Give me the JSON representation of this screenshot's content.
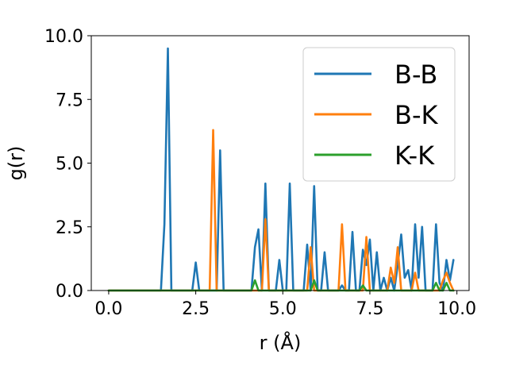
{
  "chart_data": {
    "type": "line",
    "xlabel": "r (Å)",
    "ylabel": "g(r)",
    "xlim": [
      -0.5,
      10.35
    ],
    "ylim": [
      0,
      10
    ],
    "xticks": [
      "0.0",
      "2.5",
      "5.0",
      "7.5",
      "10.0"
    ],
    "yticks": [
      "0.0",
      "2.5",
      "5.0",
      "7.5",
      "10.0"
    ],
    "grid": false,
    "legend": {
      "placement": "upper right"
    },
    "series": [
      {
        "name": "B-B",
        "color": "#1f77b4",
        "points": [
          [
            0.0,
            0
          ],
          [
            1.5,
            0
          ],
          [
            1.6,
            2.6
          ],
          [
            1.7,
            9.5
          ],
          [
            1.8,
            0
          ],
          [
            2.4,
            0
          ],
          [
            2.5,
            1.1
          ],
          [
            2.6,
            0
          ],
          [
            3.1,
            0
          ],
          [
            3.2,
            5.5
          ],
          [
            3.3,
            0
          ],
          [
            4.1,
            0
          ],
          [
            4.2,
            1.7
          ],
          [
            4.3,
            2.4
          ],
          [
            4.4,
            0
          ],
          [
            4.5,
            4.2
          ],
          [
            4.6,
            0
          ],
          [
            4.8,
            0
          ],
          [
            4.9,
            1.2
          ],
          [
            5.0,
            0
          ],
          [
            5.1,
            0
          ],
          [
            5.2,
            4.2
          ],
          [
            5.3,
            0
          ],
          [
            5.6,
            0
          ],
          [
            5.7,
            1.8
          ],
          [
            5.8,
            0
          ],
          [
            5.9,
            4.1
          ],
          [
            6.0,
            0
          ],
          [
            6.1,
            0
          ],
          [
            6.2,
            1.5
          ],
          [
            6.3,
            0
          ],
          [
            6.6,
            0
          ],
          [
            6.7,
            0.2
          ],
          [
            6.8,
            0
          ],
          [
            6.9,
            0
          ],
          [
            7.0,
            2.3
          ],
          [
            7.1,
            0
          ],
          [
            7.2,
            0
          ],
          [
            7.3,
            1.6
          ],
          [
            7.4,
            1.0
          ],
          [
            7.5,
            2.0
          ],
          [
            7.6,
            0
          ],
          [
            7.7,
            1.5
          ],
          [
            7.8,
            0
          ],
          [
            7.9,
            0.5
          ],
          [
            8.0,
            0
          ],
          [
            8.1,
            0.5
          ],
          [
            8.2,
            0
          ],
          [
            8.3,
            1.0
          ],
          [
            8.4,
            2.2
          ],
          [
            8.5,
            0.5
          ],
          [
            8.6,
            0.8
          ],
          [
            8.7,
            0
          ],
          [
            8.8,
            2.6
          ],
          [
            8.9,
            0.5
          ],
          [
            9.0,
            2.5
          ],
          [
            9.1,
            0
          ],
          [
            9.3,
            0
          ],
          [
            9.4,
            2.6
          ],
          [
            9.5,
            0.3
          ],
          [
            9.6,
            0
          ],
          [
            9.7,
            1.2
          ],
          [
            9.8,
            0.4
          ],
          [
            9.9,
            1.2
          ]
        ]
      },
      {
        "name": "B-K",
        "color": "#ff7f0e",
        "points": [
          [
            0.0,
            0
          ],
          [
            2.9,
            0
          ],
          [
            3.0,
            6.3
          ],
          [
            3.1,
            0
          ],
          [
            4.4,
            0
          ],
          [
            4.5,
            2.8
          ],
          [
            4.6,
            0
          ],
          [
            5.7,
            0
          ],
          [
            5.8,
            1.7
          ],
          [
            5.9,
            0
          ],
          [
            6.6,
            0
          ],
          [
            6.7,
            2.6
          ],
          [
            6.8,
            0
          ],
          [
            7.3,
            0
          ],
          [
            7.4,
            2.1
          ],
          [
            7.5,
            0
          ],
          [
            8.0,
            0
          ],
          [
            8.1,
            0.9
          ],
          [
            8.2,
            0.3
          ],
          [
            8.3,
            1.7
          ],
          [
            8.4,
            0
          ],
          [
            8.7,
            0
          ],
          [
            8.8,
            0.7
          ],
          [
            8.9,
            0
          ],
          [
            9.5,
            0
          ],
          [
            9.6,
            0.4
          ],
          [
            9.7,
            0.7
          ],
          [
            9.8,
            0.3
          ],
          [
            9.9,
            0
          ]
        ]
      },
      {
        "name": "K-K",
        "color": "#2ca02c",
        "points": [
          [
            0.0,
            0
          ],
          [
            4.1,
            0
          ],
          [
            4.2,
            0.4
          ],
          [
            4.3,
            0
          ],
          [
            5.8,
            0
          ],
          [
            5.9,
            0.4
          ],
          [
            6.0,
            0
          ],
          [
            7.2,
            0
          ],
          [
            7.3,
            0.2
          ],
          [
            7.4,
            0
          ],
          [
            9.3,
            0
          ],
          [
            9.4,
            0.3
          ],
          [
            9.5,
            0
          ],
          [
            9.6,
            0
          ],
          [
            9.7,
            0.3
          ],
          [
            9.8,
            0
          ],
          [
            9.9,
            0
          ]
        ]
      }
    ]
  }
}
